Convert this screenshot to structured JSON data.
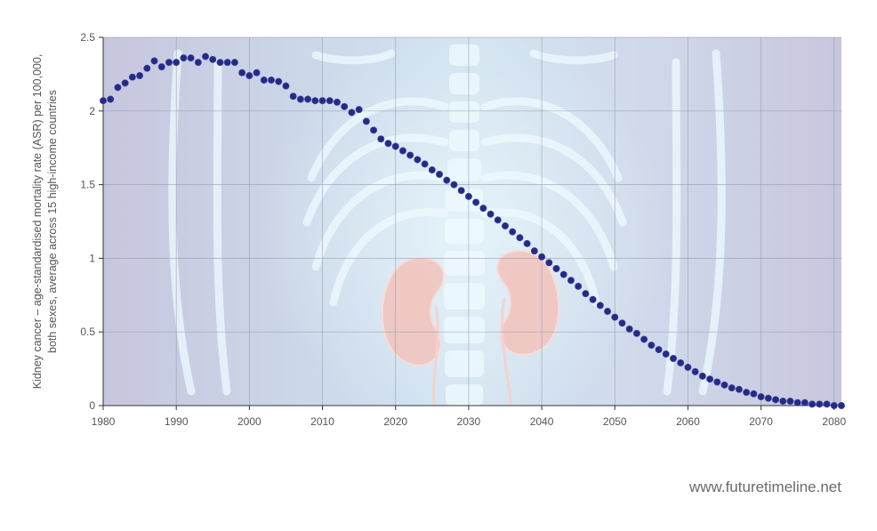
{
  "watermark": "www.futuretimeline.net",
  "colors": {
    "plot_background": "#c9d4e6",
    "grid": "#8c95a6",
    "point": "#252b84",
    "illustration_bone": "#e9f6fd",
    "illustration_kidney": "#f1c4bf"
  },
  "chart_data": {
    "type": "scatter",
    "title": "",
    "xlabel": "",
    "ylabel_lines": [
      "Kidney cancer – age-standardised mortality rate (ASR) per 100,000,",
      "both sexes, average across 15 high-income countries"
    ],
    "xlim": [
      1980,
      2081
    ],
    "ylim": [
      0,
      2.5
    ],
    "x_ticks": [
      1980,
      1990,
      2000,
      2010,
      2020,
      2030,
      2040,
      2050,
      2060,
      2070,
      2080
    ],
    "y_ticks": [
      0,
      0.5,
      1,
      1.5,
      2,
      2.5
    ],
    "y_tick_labels": [
      "0",
      "0.5",
      "1",
      "1.5",
      "2",
      "2.5"
    ],
    "grid": true,
    "marker": "filled-circle",
    "x": [
      1980,
      1981,
      1982,
      1983,
      1984,
      1985,
      1986,
      1987,
      1988,
      1989,
      1990,
      1991,
      1992,
      1993,
      1994,
      1995,
      1996,
      1997,
      1998,
      1999,
      2000,
      2001,
      2002,
      2003,
      2004,
      2005,
      2006,
      2007,
      2008,
      2009,
      2010,
      2011,
      2012,
      2013,
      2014,
      2015,
      2016,
      2017,
      2018,
      2019,
      2020,
      2021,
      2022,
      2023,
      2024,
      2025,
      2026,
      2027,
      2028,
      2029,
      2030,
      2031,
      2032,
      2033,
      2034,
      2035,
      2036,
      2037,
      2038,
      2039,
      2040,
      2041,
      2042,
      2043,
      2044,
      2045,
      2046,
      2047,
      2048,
      2049,
      2050,
      2051,
      2052,
      2053,
      2054,
      2055,
      2056,
      2057,
      2058,
      2059,
      2060,
      2061,
      2062,
      2063,
      2064,
      2065,
      2066,
      2067,
      2068,
      2069,
      2070,
      2071,
      2072,
      2073,
      2074,
      2075,
      2076,
      2077,
      2078,
      2079,
      2080,
      2081
    ],
    "y": [
      2.07,
      2.08,
      2.16,
      2.19,
      2.23,
      2.24,
      2.29,
      2.34,
      2.3,
      2.33,
      2.33,
      2.36,
      2.36,
      2.33,
      2.37,
      2.35,
      2.33,
      2.33,
      2.33,
      2.26,
      2.24,
      2.26,
      2.21,
      2.21,
      2.2,
      2.17,
      2.1,
      2.08,
      2.08,
      2.07,
      2.07,
      2.07,
      2.06,
      2.03,
      1.99,
      2.01,
      1.93,
      1.87,
      1.81,
      1.78,
      1.76,
      1.73,
      1.7,
      1.67,
      1.64,
      1.6,
      1.57,
      1.53,
      1.5,
      1.46,
      1.42,
      1.38,
      1.34,
      1.3,
      1.26,
      1.22,
      1.18,
      1.14,
      1.1,
      1.05,
      1.01,
      0.97,
      0.93,
      0.89,
      0.85,
      0.81,
      0.76,
      0.72,
      0.68,
      0.64,
      0.6,
      0.56,
      0.52,
      0.49,
      0.45,
      0.41,
      0.38,
      0.35,
      0.32,
      0.29,
      0.26,
      0.23,
      0.2,
      0.18,
      0.16,
      0.14,
      0.12,
      0.11,
      0.09,
      0.08,
      0.06,
      0.05,
      0.04,
      0.03,
      0.03,
      0.02,
      0.02,
      0.01,
      0.01,
      0.01,
      0.0,
      0.0
    ]
  }
}
